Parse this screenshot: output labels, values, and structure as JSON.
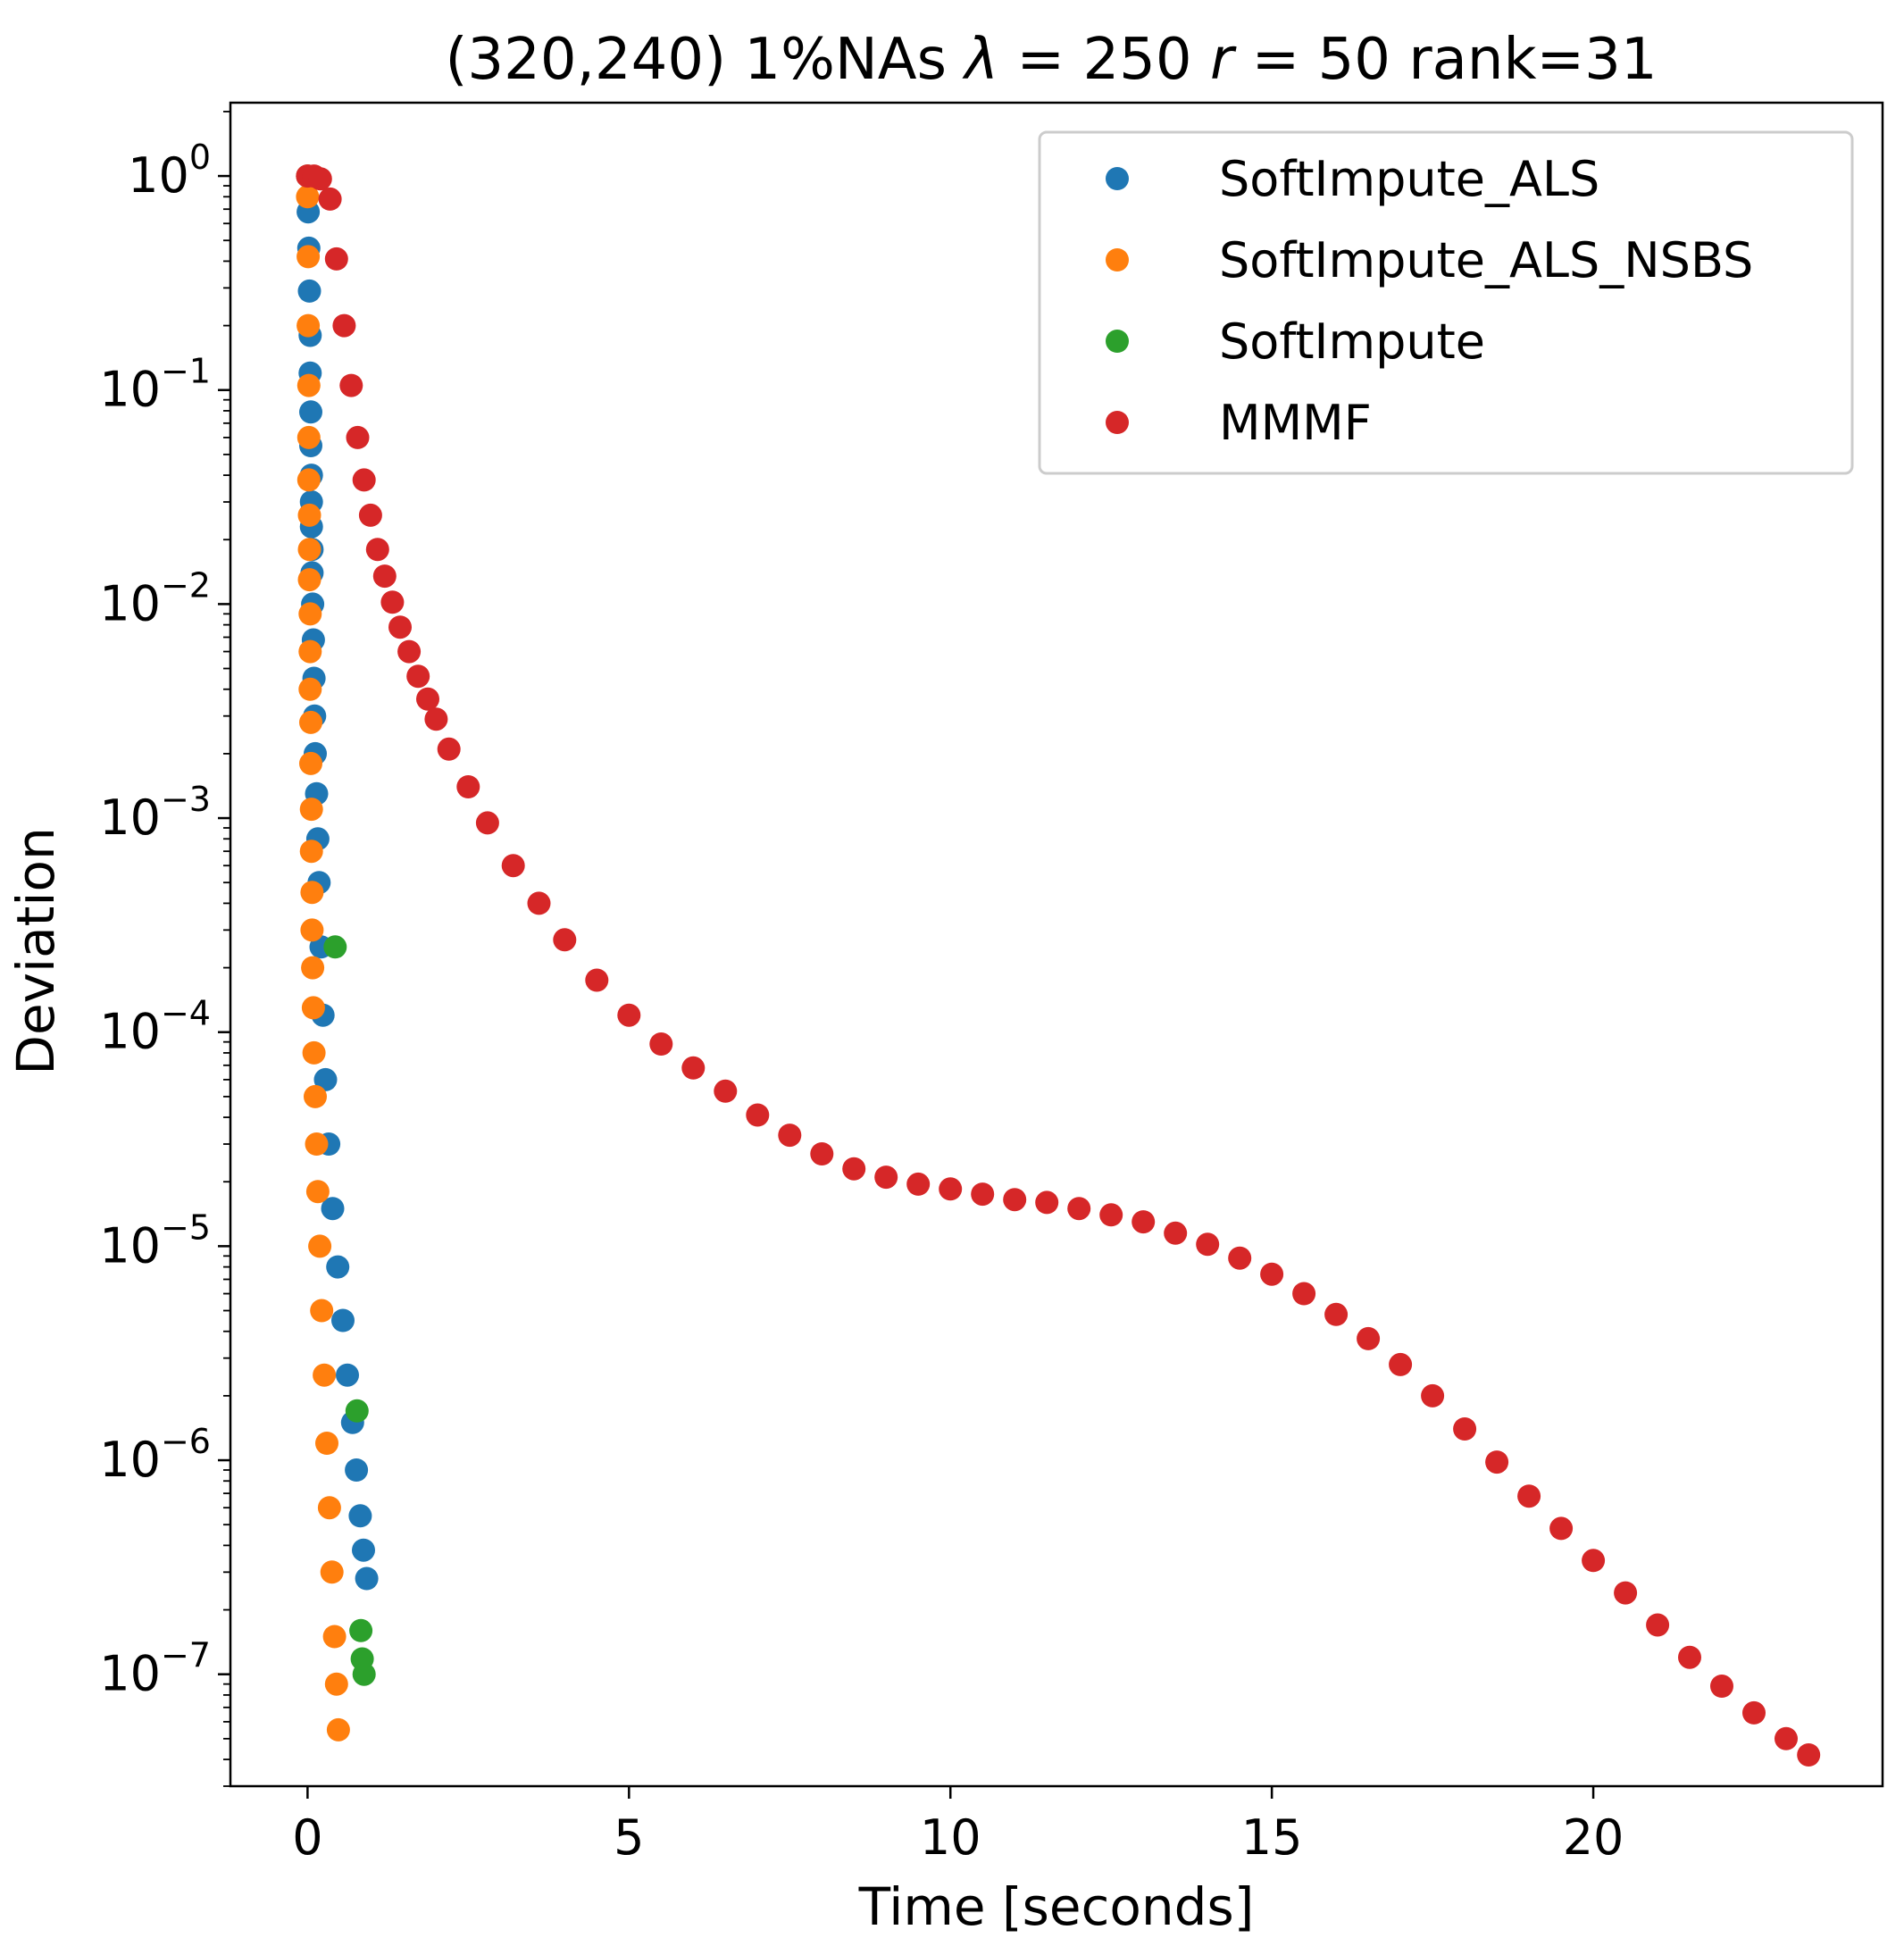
{
  "chart_data": {
    "type": "scatter",
    "title": "(320,240) 1%NAs λ = 250 r = 50 rank=31",
    "title_parts": {
      "prefix": "(320,240) 1%NAs ",
      "lambda_symbol": "λ",
      "lambda_value": " = 250 ",
      "r_symbol": "r",
      "r_value": " = 50 rank=31"
    },
    "xlabel": "Time [seconds]",
    "ylabel": "Deviation",
    "xlim": [
      -1.2,
      24.5
    ],
    "ylim": [
      3e-08,
      2.2
    ],
    "yscale": "log",
    "grid": false,
    "legend_position": "top-right",
    "x_ticks": [
      {
        "value": 0,
        "label": "0"
      },
      {
        "value": 5,
        "label": "5"
      },
      {
        "value": 10,
        "label": "10"
      },
      {
        "value": 15,
        "label": "15"
      },
      {
        "value": 20,
        "label": "20"
      }
    ],
    "y_ticks": [
      {
        "value": 1,
        "base": "10",
        "exp": "0"
      },
      {
        "value": 0.1,
        "base": "10",
        "exp": "−1"
      },
      {
        "value": 0.01,
        "base": "10",
        "exp": "−2"
      },
      {
        "value": 0.001,
        "base": "10",
        "exp": "−3"
      },
      {
        "value": 0.0001,
        "base": "10",
        "exp": "−4"
      },
      {
        "value": 1e-05,
        "base": "10",
        "exp": "−5"
      },
      {
        "value": 1e-06,
        "base": "10",
        "exp": "−6"
      },
      {
        "value": 1e-07,
        "base": "10",
        "exp": "−7"
      }
    ],
    "series": [
      {
        "name": "SoftImpute_ALS",
        "color": "#1f77b4",
        "points": [
          [
            0.0,
            1.0
          ],
          [
            0.01,
            0.68
          ],
          [
            0.02,
            0.46
          ],
          [
            0.03,
            0.29
          ],
          [
            0.04,
            0.18
          ],
          [
            0.04,
            0.12
          ],
          [
            0.05,
            0.079
          ],
          [
            0.05,
            0.055
          ],
          [
            0.06,
            0.04
          ],
          [
            0.06,
            0.03
          ],
          [
            0.06,
            0.023
          ],
          [
            0.07,
            0.018
          ],
          [
            0.07,
            0.014
          ],
          [
            0.08,
            0.01
          ],
          [
            0.09,
            0.0068
          ],
          [
            0.1,
            0.0045
          ],
          [
            0.11,
            0.003
          ],
          [
            0.12,
            0.002
          ],
          [
            0.14,
            0.0013
          ],
          [
            0.16,
            0.0008
          ],
          [
            0.18,
            0.0005
          ],
          [
            0.21,
            0.00025
          ],
          [
            0.24,
            0.00012
          ],
          [
            0.28,
            6e-05
          ],
          [
            0.33,
            3e-05
          ],
          [
            0.39,
            1.5e-05
          ],
          [
            0.47,
            8e-06
          ],
          [
            0.55,
            4.5e-06
          ],
          [
            0.62,
            2.5e-06
          ],
          [
            0.7,
            1.5e-06
          ],
          [
            0.76,
            9e-07
          ],
          [
            0.82,
            5.5e-07
          ],
          [
            0.87,
            3.8e-07
          ],
          [
            0.92,
            2.8e-07
          ]
        ]
      },
      {
        "name": "SoftImpute_ALS_NSBS",
        "color": "#ff7f0e",
        "points": [
          [
            0.0,
            1.0
          ],
          [
            0.0,
            0.8
          ],
          [
            0.01,
            0.42
          ],
          [
            0.01,
            0.2
          ],
          [
            0.02,
            0.105
          ],
          [
            0.02,
            0.06
          ],
          [
            0.02,
            0.038
          ],
          [
            0.03,
            0.026
          ],
          [
            0.03,
            0.018
          ],
          [
            0.03,
            0.013
          ],
          [
            0.04,
            0.009
          ],
          [
            0.04,
            0.006
          ],
          [
            0.04,
            0.004
          ],
          [
            0.05,
            0.0028
          ],
          [
            0.05,
            0.0018
          ],
          [
            0.06,
            0.0011
          ],
          [
            0.06,
            0.0007
          ],
          [
            0.07,
            0.00045
          ],
          [
            0.07,
            0.0003
          ],
          [
            0.08,
            0.0002
          ],
          [
            0.09,
            0.00013
          ],
          [
            0.1,
            8e-05
          ],
          [
            0.12,
            5e-05
          ],
          [
            0.14,
            3e-05
          ],
          [
            0.16,
            1.8e-05
          ],
          [
            0.19,
            1e-05
          ],
          [
            0.22,
            5e-06
          ],
          [
            0.26,
            2.5e-06
          ],
          [
            0.3,
            1.2e-06
          ],
          [
            0.34,
            6e-07
          ],
          [
            0.38,
            3e-07
          ],
          [
            0.42,
            1.5e-07
          ],
          [
            0.45,
            9e-08
          ],
          [
            0.48,
            5.5e-08
          ]
        ]
      },
      {
        "name": "SoftImpute",
        "color": "#2ca02c",
        "points": [
          [
            0.43,
            0.00025
          ],
          [
            0.77,
            1.7e-06
          ],
          [
            0.83,
            1.6e-07
          ],
          [
            0.85,
            1.18e-07
          ],
          [
            0.88,
            1e-07
          ]
        ]
      },
      {
        "name": "MMMF",
        "color": "#d62728",
        "points": [
          [
            0.0,
            1.0
          ],
          [
            0.1,
            1.0
          ],
          [
            0.2,
            0.97
          ],
          [
            0.35,
            0.78
          ],
          [
            0.45,
            0.41
          ],
          [
            0.57,
            0.2
          ],
          [
            0.68,
            0.105
          ],
          [
            0.78,
            0.06
          ],
          [
            0.88,
            0.038
          ],
          [
            0.98,
            0.026
          ],
          [
            1.09,
            0.018
          ],
          [
            1.2,
            0.0135
          ],
          [
            1.32,
            0.0102
          ],
          [
            1.44,
            0.0078
          ],
          [
            1.58,
            0.006
          ],
          [
            1.72,
            0.0046
          ],
          [
            1.87,
            0.0036
          ],
          [
            2.0,
            0.0029
          ],
          [
            2.2,
            0.0021
          ],
          [
            2.5,
            0.0014
          ],
          [
            2.8,
            0.00095
          ],
          [
            3.2,
            0.0006
          ],
          [
            3.6,
            0.0004
          ],
          [
            4.0,
            0.00027
          ],
          [
            4.5,
            0.000175
          ],
          [
            5.0,
            0.00012
          ],
          [
            5.5,
            8.8e-05
          ],
          [
            6.0,
            6.8e-05
          ],
          [
            6.5,
            5.3e-05
          ],
          [
            7.0,
            4.1e-05
          ],
          [
            7.5,
            3.3e-05
          ],
          [
            8.0,
            2.7e-05
          ],
          [
            8.5,
            2.3e-05
          ],
          [
            9.0,
            2.1e-05
          ],
          [
            9.5,
            1.95e-05
          ],
          [
            10.0,
            1.85e-05
          ],
          [
            10.5,
            1.75e-05
          ],
          [
            11.0,
            1.65e-05
          ],
          [
            11.5,
            1.6e-05
          ],
          [
            12.0,
            1.5e-05
          ],
          [
            12.5,
            1.4e-05
          ],
          [
            13.0,
            1.3e-05
          ],
          [
            13.5,
            1.15e-05
          ],
          [
            14.0,
            1.02e-05
          ],
          [
            14.5,
            8.8e-06
          ],
          [
            15.0,
            7.4e-06
          ],
          [
            15.5,
            6e-06
          ],
          [
            16.0,
            4.8e-06
          ],
          [
            16.5,
            3.7e-06
          ],
          [
            17.0,
            2.8e-06
          ],
          [
            17.5,
            2e-06
          ],
          [
            18.0,
            1.4e-06
          ],
          [
            18.5,
            9.8e-07
          ],
          [
            19.0,
            6.8e-07
          ],
          [
            19.5,
            4.8e-07
          ],
          [
            20.0,
            3.4e-07
          ],
          [
            20.5,
            2.4e-07
          ],
          [
            21.0,
            1.7e-07
          ],
          [
            21.5,
            1.2e-07
          ],
          [
            22.0,
            8.8e-08
          ],
          [
            22.5,
            6.6e-08
          ],
          [
            23.0,
            5e-08
          ],
          [
            23.35,
            4.2e-08
          ]
        ]
      }
    ]
  }
}
